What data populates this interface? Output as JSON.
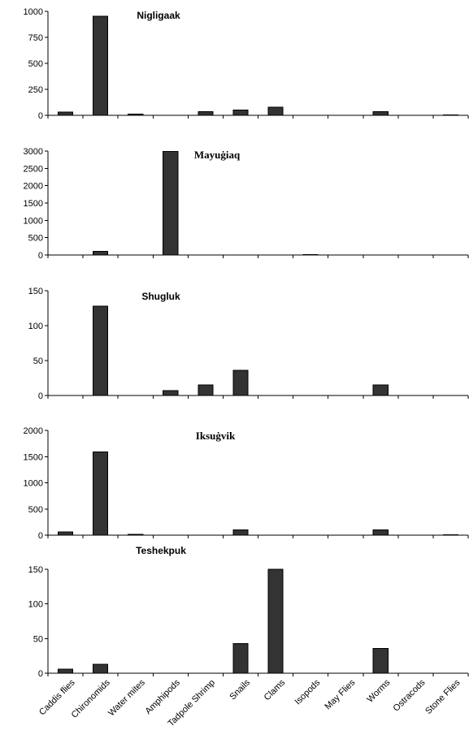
{
  "colors": {
    "bar": "#333333",
    "axis": "#000000",
    "background": "#ffffff"
  },
  "chart_data": [
    {
      "type": "bar",
      "title": "Nigligaak",
      "categories": [
        "Caddis flies",
        "Chironomids",
        "Water mites",
        "Amphipods",
        "Tadpole Shrimp",
        "Snails",
        "Clams",
        "Isopods",
        "May Flies",
        "Worms",
        "Ostracods",
        "Stone Flies"
      ],
      "values": [
        30,
        955,
        12,
        0,
        35,
        50,
        80,
        0,
        0,
        35,
        0,
        5
      ],
      "ylim": [
        0,
        1000
      ],
      "yticks": [
        "0",
        "250",
        "500",
        "750",
        "1000"
      ],
      "xlabel": "",
      "ylabel": "",
      "grid": false
    },
    {
      "type": "bar",
      "title": "Mayuġiaq",
      "categories": [
        "Caddis flies",
        "Chironomids",
        "Water mites",
        "Amphipods",
        "Tadpole Shrimp",
        "Snails",
        "Clams",
        "Isopods",
        "May Flies",
        "Worms",
        "Ostracods",
        "Stone Flies"
      ],
      "values": [
        0,
        110,
        0,
        2990,
        0,
        0,
        0,
        15,
        0,
        0,
        0,
        0
      ],
      "ylim": [
        0,
        3000
      ],
      "yticks": [
        "0",
        "500",
        "1000",
        "1500",
        "2000",
        "2500",
        "3000"
      ],
      "xlabel": "",
      "ylabel": "",
      "grid": false
    },
    {
      "type": "bar",
      "title": "Shugluk",
      "categories": [
        "Caddis flies",
        "Chironomids",
        "Water mites",
        "Amphipods",
        "Tadpole Shrimp",
        "Snails",
        "Clams",
        "Isopods",
        "May Flies",
        "Worms",
        "Ostracods",
        "Stone Flies"
      ],
      "values": [
        0,
        128,
        0,
        7,
        15,
        36,
        0,
        0,
        0,
        15,
        0,
        0
      ],
      "ylim": [
        0,
        150
      ],
      "yticks": [
        "0",
        "50",
        "100",
        "150"
      ],
      "xlabel": "",
      "ylabel": "",
      "grid": false
    },
    {
      "type": "bar",
      "title": "Iksuġvik",
      "categories": [
        "Caddis flies",
        "Chironomids",
        "Water mites",
        "Amphipods",
        "Tadpole Shrimp",
        "Snails",
        "Clams",
        "Isopods",
        "May Flies",
        "Worms",
        "Ostracods",
        "Stone Flies"
      ],
      "values": [
        60,
        1590,
        12,
        0,
        0,
        100,
        0,
        0,
        0,
        100,
        0,
        10
      ],
      "ylim": [
        0,
        2000
      ],
      "yticks": [
        "0",
        "500",
        "1000",
        "1500",
        "2000"
      ],
      "xlabel": "",
      "ylabel": "",
      "grid": false
    },
    {
      "type": "bar",
      "title": "Teshekpuk",
      "categories": [
        "Caddis flies",
        "Chironomids",
        "Water mites",
        "Amphipods",
        "Tadpole Shrimp",
        "Snails",
        "Clams",
        "Isopods",
        "May Flies",
        "Worms",
        "Ostracods",
        "Stone Flies"
      ],
      "values": [
        6,
        13,
        0,
        0,
        0,
        43,
        150,
        0,
        0,
        36,
        0,
        0
      ],
      "ylim": [
        0,
        150
      ],
      "yticks": [
        "0",
        "50",
        "100",
        "150"
      ],
      "xlabel": "",
      "ylabel": "",
      "grid": false,
      "show_category_labels": true
    }
  ]
}
